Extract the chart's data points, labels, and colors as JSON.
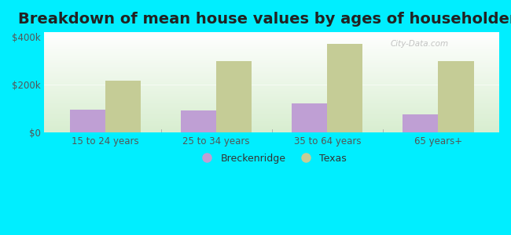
{
  "title": "Breakdown of mean house values by ages of householders",
  "categories": [
    "15 to 24 years",
    "25 to 34 years",
    "35 to 64 years",
    "65 years+"
  ],
  "breckenridge_values": [
    95000,
    92000,
    120000,
    75000
  ],
  "texas_values": [
    218000,
    300000,
    370000,
    298000
  ],
  "bar_color_breckenridge": "#bf9fd4",
  "bar_color_texas": "#c5cc96",
  "background_color": "#00eeff",
  "ylim": [
    0,
    420000
  ],
  "ytick_labels": [
    "$0",
    "$200k",
    "$400k"
  ],
  "ytick_values": [
    0,
    200000,
    400000
  ],
  "legend_labels": [
    "Breckenridge",
    "Texas"
  ],
  "title_fontsize": 14,
  "watermark": "City-Data.com"
}
